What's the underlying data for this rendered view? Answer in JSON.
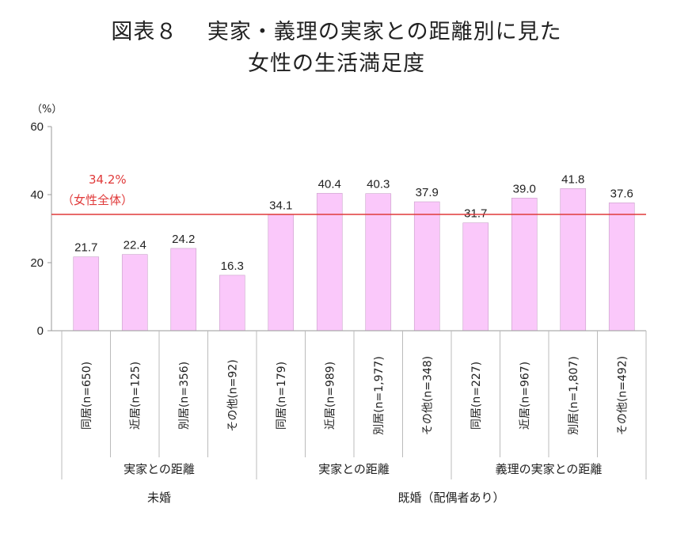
{
  "title_line1": "図表８　 実家・義理の実家との距離別に見た",
  "title_line2": "女性の生活満足度",
  "chart_data": {
    "type": "bar",
    "y_unit": "（%）",
    "ylim": [
      0,
      60
    ],
    "yticks": [
      0,
      20,
      40,
      60
    ],
    "grid": false,
    "bar_color": "#fac8fa",
    "categories": [
      "同居(n=650)",
      "近居(n=125)",
      "別居(n=356)",
      "その他(n=92)",
      "同居(n=179)",
      "近居(n=989)",
      "別居(n=1,977)",
      "その他(n=348)",
      "同居(n=227)",
      "近居(n=967)",
      "別居(n=1,807)",
      "その他(n=492)"
    ],
    "values": [
      21.7,
      22.4,
      24.2,
      16.3,
      34.1,
      40.4,
      40.3,
      37.9,
      31.7,
      39.0,
      41.8,
      37.6
    ],
    "value_labels": [
      "21.7",
      "22.4",
      "24.2",
      "16.3",
      "34.1",
      "40.4",
      "40.3",
      "37.9",
      "31.7",
      "39.0",
      "41.8",
      "37.6"
    ],
    "reference_line": {
      "value": 34.2,
      "label_value": "34.2%",
      "label_text": "（女性全体）",
      "color": "#e03a3a"
    },
    "group_level1": [
      {
        "label": "実家との距離",
        "start": 0,
        "end": 3
      },
      {
        "label": "実家との距離",
        "start": 4,
        "end": 7
      },
      {
        "label": "義理の実家との距離",
        "start": 8,
        "end": 11
      }
    ],
    "group_level2": [
      {
        "label": "未婚",
        "start": 0,
        "end": 3
      },
      {
        "label": "既婚（配偶者あり）",
        "start": 4,
        "end": 11
      }
    ]
  }
}
